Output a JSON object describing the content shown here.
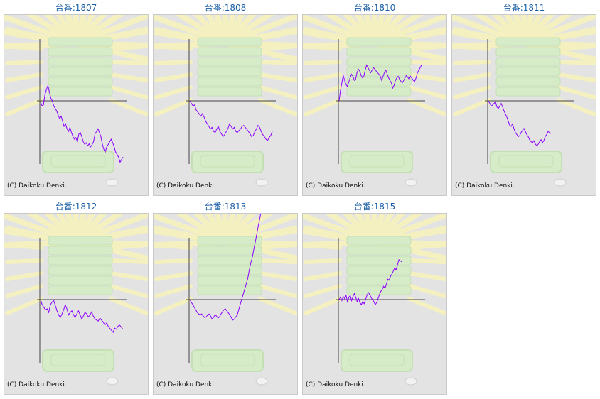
{
  "page": {
    "copyright": "(C) Daikoku Denki."
  },
  "colors": {
    "title": "#1a5ea6",
    "line": "#8a00ff",
    "panel_bg": "#e3e3e3",
    "rays": "#f4f0c0",
    "machine": "#d6ecc8"
  },
  "machines": [
    {
      "title": "台番:1807",
      "data": [
        -2,
        -10,
        -8,
        12,
        22,
        30,
        18,
        5,
        0,
        -10,
        -15,
        -20,
        -28,
        -35,
        -30,
        -40,
        -50,
        -45,
        -55,
        -60,
        -52,
        -62,
        -70,
        -75,
        -72,
        -80,
        -65,
        -62,
        -70,
        -80,
        -85,
        -82,
        -88,
        -84,
        -90,
        -86,
        -80,
        -65,
        -60,
        -55,
        -62,
        -70,
        -85,
        -95,
        -100,
        -90,
        -85,
        -80,
        -75,
        -82,
        -90,
        -100,
        -105,
        -110,
        -120,
        -115,
        -110
      ]
    },
    {
      "title": "台番:1808",
      "data": [
        0,
        -5,
        -10,
        -8,
        -18,
        -22,
        -26,
        -30,
        -25,
        -32,
        -40,
        -45,
        -50,
        -55,
        -52,
        -60,
        -62,
        -55,
        -50,
        -60,
        -65,
        -70,
        -66,
        -60,
        -55,
        -45,
        -50,
        -55,
        -52,
        -60,
        -62,
        -58,
        -55,
        -50,
        -48,
        -52,
        -56,
        -60,
        -65,
        -70,
        -68,
        -60,
        -55,
        -48,
        -52,
        -60,
        -66,
        -70,
        -75,
        -78,
        -72,
        -68,
        -60
      ]
    },
    {
      "title": "台番:1810",
      "data": [
        0,
        20,
        35,
        50,
        40,
        32,
        28,
        36,
        45,
        52,
        48,
        40,
        42,
        55,
        62,
        58,
        50,
        45,
        48,
        60,
        70,
        65,
        60,
        55,
        60,
        65,
        62,
        58,
        55,
        52,
        48,
        40,
        48,
        56,
        60,
        52,
        45,
        40,
        35,
        25,
        30,
        40,
        45,
        48,
        42,
        38,
        35,
        40,
        45,
        50,
        46,
        42,
        48,
        44,
        40,
        38,
        45,
        55,
        60,
        65,
        70
      ]
    },
    {
      "title": "台番:1811",
      "data": [
        0,
        -5,
        -10,
        -8,
        -5,
        -2,
        -12,
        -15,
        -10,
        -5,
        -12,
        -20,
        -26,
        -32,
        -40,
        -48,
        -50,
        -45,
        -55,
        -62,
        -66,
        -70,
        -68,
        -62,
        -58,
        -54,
        -60,
        -66,
        -70,
        -76,
        -80,
        -82,
        -78,
        -84,
        -88,
        -85,
        -80,
        -76,
        -82,
        -78,
        -70,
        -66,
        -60,
        -62,
        -64
      ]
    },
    {
      "title": "台番:1812",
      "data": [
        0,
        -10,
        -15,
        -20,
        -18,
        -25,
        -10,
        -5,
        -2,
        -12,
        -22,
        -30,
        -35,
        -28,
        -20,
        -10,
        -18,
        -30,
        -25,
        -22,
        -30,
        -35,
        -28,
        -22,
        -30,
        -38,
        -32,
        -25,
        -28,
        -34,
        -30,
        -24,
        -32,
        -38,
        -40,
        -42,
        -36,
        -40,
        -44,
        -50,
        -46,
        -52,
        -56,
        -60,
        -64,
        -56,
        -58,
        -52,
        -50,
        -54,
        -58
      ]
    },
    {
      "title": "台番:1813",
      "data": [
        0,
        -5,
        -10,
        -15,
        -20,
        -25,
        -28,
        -30,
        -28,
        -32,
        -35,
        -34,
        -30,
        -28,
        -32,
        -38,
        -35,
        -30,
        -32,
        -36,
        -34,
        -28,
        -24,
        -20,
        -18,
        -22,
        -26,
        -30,
        -35,
        -40,
        -38,
        -34,
        -30,
        -20,
        -10,
        0,
        10,
        20,
        30,
        40,
        55,
        70,
        80,
        95,
        110,
        125,
        140,
        155,
        170
      ]
    },
    {
      "title": "台番:1815",
      "data": [
        0,
        5,
        -2,
        6,
        2,
        8,
        -4,
        4,
        8,
        -2,
        6,
        12,
        4,
        -4,
        2,
        -6,
        -10,
        -4,
        -8,
        0,
        8,
        14,
        10,
        4,
        0,
        -4,
        -10,
        -6,
        2,
        10,
        16,
        20,
        26,
        22,
        30,
        40,
        38,
        46,
        50,
        56,
        62,
        58,
        68,
        78,
        76,
        74
      ]
    }
  ]
}
